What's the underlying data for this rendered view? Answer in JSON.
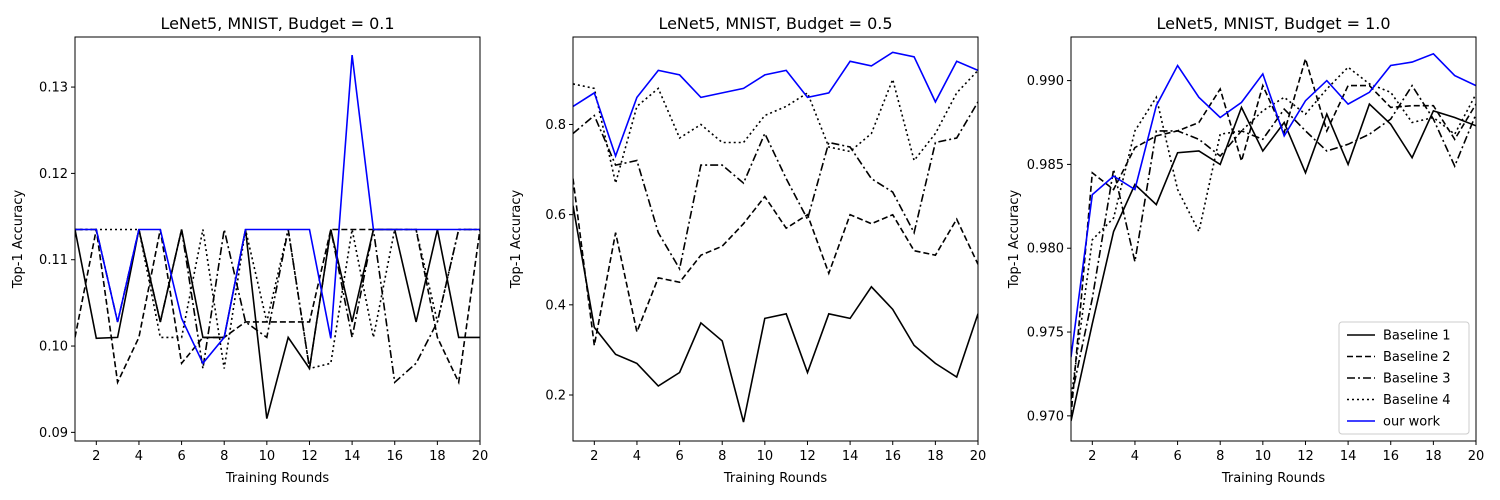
{
  "chart_data": [
    {
      "type": "line",
      "title": "LeNet5, MNIST, Budget = 0.1",
      "xlabel": "Training Rounds",
      "ylabel": "Top-1 Accuracy",
      "xlim": [
        1,
        20
      ],
      "ylim": [
        0.089,
        0.1358
      ],
      "xticks": [
        2,
        4,
        6,
        8,
        10,
        12,
        14,
        16,
        18,
        20
      ],
      "yticks": [
        0.09,
        0.1,
        0.11,
        0.12,
        0.13
      ],
      "ytick_labels": [
        "0.09",
        "0.10",
        "0.11",
        "0.12",
        "0.13"
      ],
      "x": [
        1,
        2,
        3,
        4,
        5,
        6,
        7,
        8,
        9,
        10,
        11,
        12,
        13,
        14,
        15,
        16,
        17,
        18,
        19,
        20
      ],
      "series": [
        {
          "name": "Baseline 1",
          "style": "solid",
          "color": "#000000",
          "values": [
            0.1135,
            0.1009,
            0.101,
            0.1135,
            0.1028,
            0.1135,
            0.101,
            0.101,
            0.1135,
            0.0916,
            0.101,
            0.0974,
            0.1135,
            0.1028,
            0.1135,
            0.1135,
            0.1028,
            0.1135,
            0.101,
            0.101
          ]
        },
        {
          "name": "Baseline 2",
          "style": "dashed",
          "color": "#000000",
          "values": [
            0.101,
            0.1135,
            0.0958,
            0.101,
            0.1135,
            0.098,
            0.101,
            0.101,
            0.1028,
            0.1028,
            0.1028,
            0.1028,
            0.1135,
            0.1135,
            0.1135,
            0.1135,
            0.1135,
            0.101,
            0.0958,
            0.1135
          ]
        },
        {
          "name": "Baseline 3",
          "style": "dashdot",
          "color": "#000000",
          "values": [
            0.1135,
            0.1135,
            0.1028,
            0.1135,
            0.1028,
            0.1135,
            0.0974,
            0.1135,
            0.1028,
            0.101,
            0.1135,
            0.0974,
            0.1135,
            0.101,
            0.1135,
            0.0958,
            0.098,
            0.1028,
            0.1135,
            0.1135
          ]
        },
        {
          "name": "Baseline 4",
          "style": "dotted",
          "color": "#000000",
          "values": [
            0.1135,
            0.1135,
            0.1135,
            0.1135,
            0.101,
            0.101,
            0.1135,
            0.0974,
            0.1135,
            0.1028,
            0.1135,
            0.0974,
            0.098,
            0.1135,
            0.101,
            0.1135,
            0.1135,
            0.1028,
            0.1135,
            0.1135
          ]
        },
        {
          "name": "our work",
          "style": "solid",
          "color": "#0000ff",
          "values": [
            0.1135,
            0.1135,
            0.1028,
            0.1135,
            0.1135,
            0.1032,
            0.098,
            0.101,
            0.1135,
            0.1135,
            0.1135,
            0.1135,
            0.1009,
            0.1337,
            0.1135,
            0.1135,
            0.1135,
            0.1135,
            0.1135,
            0.1135
          ]
        }
      ]
    },
    {
      "type": "line",
      "title": "LeNet5, MNIST, Budget = 0.5",
      "xlabel": "Training Rounds",
      "ylabel": "Top-1 Accuracy",
      "xlim": [
        1,
        20
      ],
      "ylim": [
        0.098,
        0.994
      ],
      "xticks": [
        2,
        4,
        6,
        8,
        10,
        12,
        14,
        16,
        18,
        20
      ],
      "yticks": [
        0.2,
        0.4,
        0.6,
        0.8
      ],
      "ytick_labels": [
        "0.2",
        "0.4",
        "0.6",
        "0.8"
      ],
      "x": [
        1,
        2,
        3,
        4,
        5,
        6,
        7,
        8,
        9,
        10,
        11,
        12,
        13,
        14,
        15,
        16,
        17,
        18,
        19,
        20
      ],
      "series": [
        {
          "name": "Baseline 1",
          "style": "solid",
          "color": "#000000",
          "values": [
            0.62,
            0.35,
            0.29,
            0.27,
            0.22,
            0.25,
            0.36,
            0.32,
            0.14,
            0.37,
            0.38,
            0.25,
            0.38,
            0.37,
            0.44,
            0.39,
            0.31,
            0.27,
            0.24,
            0.38
          ]
        },
        {
          "name": "Baseline 2",
          "style": "dashed",
          "color": "#000000",
          "values": [
            0.68,
            0.31,
            0.56,
            0.34,
            0.46,
            0.45,
            0.51,
            0.53,
            0.58,
            0.64,
            0.57,
            0.6,
            0.47,
            0.6,
            0.58,
            0.6,
            0.52,
            0.51,
            0.59,
            0.49
          ]
        },
        {
          "name": "Baseline 3",
          "style": "dashdot",
          "color": "#000000",
          "values": [
            0.78,
            0.82,
            0.71,
            0.72,
            0.56,
            0.48,
            0.71,
            0.71,
            0.67,
            0.78,
            0.68,
            0.59,
            0.76,
            0.75,
            0.68,
            0.65,
            0.56,
            0.76,
            0.77,
            0.85
          ]
        },
        {
          "name": "Baseline 4",
          "style": "dotted",
          "color": "#000000",
          "values": [
            0.89,
            0.88,
            0.67,
            0.84,
            0.88,
            0.77,
            0.8,
            0.76,
            0.76,
            0.82,
            0.84,
            0.87,
            0.75,
            0.74,
            0.78,
            0.9,
            0.72,
            0.78,
            0.87,
            0.92
          ]
        },
        {
          "name": "our work",
          "style": "solid",
          "color": "#0000ff",
          "values": [
            0.84,
            0.87,
            0.73,
            0.86,
            0.92,
            0.91,
            0.86,
            0.87,
            0.88,
            0.91,
            0.92,
            0.86,
            0.87,
            0.94,
            0.93,
            0.96,
            0.95,
            0.85,
            0.94,
            0.92
          ]
        }
      ]
    },
    {
      "type": "line",
      "title": "LeNet5, MNIST, Budget = 1.0",
      "xlabel": "Training Rounds",
      "ylabel": "Top-1 Accuracy",
      "xlim": [
        1,
        20
      ],
      "ylim": [
        0.9685,
        0.9926
      ],
      "xticks": [
        2,
        4,
        6,
        8,
        10,
        12,
        14,
        16,
        18,
        20
      ],
      "yticks": [
        0.97,
        0.975,
        0.98,
        0.985,
        0.99
      ],
      "ytick_labels": [
        "0.970",
        "0.975",
        "0.980",
        "0.985",
        "0.990"
      ],
      "legend": "lower-right",
      "x": [
        1,
        2,
        3,
        4,
        5,
        6,
        7,
        8,
        9,
        10,
        11,
        12,
        13,
        14,
        15,
        16,
        17,
        18,
        19,
        20
      ],
      "series": [
        {
          "name": "Baseline 1",
          "style": "solid",
          "color": "#000000",
          "values": [
            0.9697,
            0.9755,
            0.981,
            0.9838,
            0.9826,
            0.9857,
            0.9858,
            0.985,
            0.9884,
            0.9858,
            0.9875,
            0.9845,
            0.988,
            0.985,
            0.9886,
            0.9874,
            0.9854,
            0.9882,
            0.9878,
            0.9873
          ]
        },
        {
          "name": "Baseline 2",
          "style": "dashed",
          "color": "#000000",
          "values": [
            0.97,
            0.9845,
            0.9835,
            0.986,
            0.9867,
            0.987,
            0.9875,
            0.9895,
            0.9852,
            0.9897,
            0.9869,
            0.9913,
            0.987,
            0.9897,
            0.9897,
            0.9884,
            0.9885,
            0.9885,
            0.9865,
            0.9886
          ]
        },
        {
          "name": "Baseline 3",
          "style": "dashdot",
          "color": "#000000",
          "values": [
            0.971,
            0.977,
            0.9847,
            0.9792,
            0.987,
            0.987,
            0.9865,
            0.9855,
            0.987,
            0.9865,
            0.9883,
            0.987,
            0.9858,
            0.9862,
            0.9868,
            0.9877,
            0.9897,
            0.9877,
            0.9849,
            0.988
          ]
        },
        {
          "name": "Baseline 4",
          "style": "dotted",
          "color": "#000000",
          "values": [
            0.971,
            0.9805,
            0.9818,
            0.987,
            0.989,
            0.9835,
            0.981,
            0.9868,
            0.987,
            0.9882,
            0.989,
            0.988,
            0.9895,
            0.9908,
            0.9898,
            0.9893,
            0.9875,
            0.9878,
            0.9868,
            0.9892
          ]
        },
        {
          "name": "our work",
          "style": "solid",
          "color": "#0000ff",
          "values": [
            0.9735,
            0.9832,
            0.9843,
            0.9835,
            0.9885,
            0.9909,
            0.989,
            0.9878,
            0.9887,
            0.9904,
            0.9867,
            0.9888,
            0.99,
            0.9886,
            0.9893,
            0.9909,
            0.9911,
            0.9916,
            0.9903,
            0.9897
          ]
        }
      ]
    }
  ]
}
